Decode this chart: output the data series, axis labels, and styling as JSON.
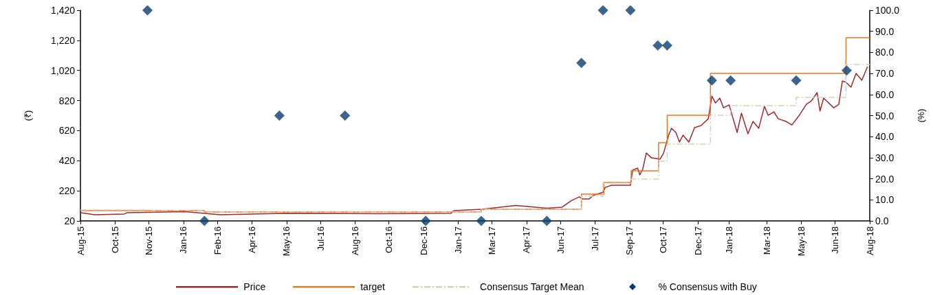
{
  "chart_data": {
    "type": "line",
    "ylabel": "(₹)",
    "y2label": "(%)",
    "xlim": [
      "2015-08-15",
      "2018-08-14"
    ],
    "xticks": [
      {
        "value": "2015-08-15",
        "label": "Aug-15"
      },
      {
        "value": "2015-10-02",
        "label": "Oct-15"
      },
      {
        "value": "2015-11-18",
        "label": "Nov-15"
      },
      {
        "value": "2016-01-05",
        "label": "Jan-16"
      },
      {
        "value": "2016-02-21",
        "label": "Feb-16"
      },
      {
        "value": "2016-04-09",
        "label": "Apr-16"
      },
      {
        "value": "2016-05-27",
        "label": "May-16"
      },
      {
        "value": "2016-07-13",
        "label": "Jul-16"
      },
      {
        "value": "2016-08-30",
        "label": "Aug-16"
      },
      {
        "value": "2016-10-16",
        "label": "Oct-16"
      },
      {
        "value": "2016-12-03",
        "label": "Dec-16"
      },
      {
        "value": "2017-01-20",
        "label": "Jan-17"
      },
      {
        "value": "2017-03-08",
        "label": "Mar-17"
      },
      {
        "value": "2017-04-25",
        "label": "Apr-17"
      },
      {
        "value": "2017-06-11",
        "label": "Jun-17"
      },
      {
        "value": "2017-07-29",
        "label": "Jul-17"
      },
      {
        "value": "2017-09-15",
        "label": "Sep-17"
      },
      {
        "value": "2017-10-31",
        "label": "Oct-17"
      },
      {
        "value": "2017-12-19",
        "label": "Dec-17"
      },
      {
        "value": "2018-01-31",
        "label": "Jan-18"
      },
      {
        "value": "2018-03-24",
        "label": "Mar-18"
      },
      {
        "value": "2018-05-11",
        "label": "May-18"
      },
      {
        "value": "2018-06-27",
        "label": "Jun-18"
      },
      {
        "value": "2018-08-14",
        "label": "Aug-18"
      }
    ],
    "ylim": [
      20,
      1420
    ],
    "yticks": [
      20,
      220,
      420,
      620,
      820,
      {
        "value": 1020,
        "label": "1,020"
      },
      {
        "value": 1220,
        "label": "1,220"
      },
      {
        "value": 1420,
        "label": "1,420"
      }
    ],
    "y2lim": [
      0,
      100
    ],
    "y2ticks": [
      {
        "value": 0,
        "label": "0.0"
      },
      {
        "value": 10,
        "label": "10.0"
      },
      {
        "value": 20,
        "label": "20.0"
      },
      {
        "value": 30,
        "label": "30.0"
      },
      {
        "value": 40,
        "label": "40.0"
      },
      {
        "value": 50,
        "label": "50.0"
      },
      {
        "value": 60,
        "label": "60.0"
      },
      {
        "value": 70,
        "label": "70.0"
      },
      {
        "value": 80,
        "label": "80.0"
      },
      {
        "value": 90,
        "label": "90.0"
      },
      {
        "value": 100,
        "label": "100.0"
      }
    ],
    "grid": false,
    "legend": "bottom",
    "marker": "none",
    "series": [
      {
        "name": "Price",
        "color": "#a0282a",
        "line_style": "solid",
        "x": [
          "2015-08-15",
          "2015-09-04",
          "2015-10-15",
          "2015-10-19",
          "2016-01-08",
          "2016-02-03",
          "2016-02-25",
          "2016-05-24",
          "2016-10-01",
          "2017-01-10",
          "2017-01-14",
          "2017-02-22",
          "2017-04-10",
          "2017-05-23",
          "2017-06-13",
          "2017-06-25",
          "2017-07-07",
          "2017-07-11",
          "2017-07-21",
          "2017-07-26",
          "2017-08-09",
          "2017-08-12",
          "2017-08-21",
          "2017-09-16",
          "2017-09-19",
          "2017-09-26",
          "2017-09-29",
          "2017-10-03",
          "2017-10-08",
          "2017-10-15",
          "2017-10-27",
          "2017-11-01",
          "2017-11-08",
          "2017-11-12",
          "2017-11-18",
          "2017-11-23",
          "2017-11-28",
          "2017-12-06",
          "2017-12-14",
          "2017-12-23",
          "2018-01-02",
          "2018-01-07",
          "2018-01-12",
          "2018-01-18",
          "2018-01-23",
          "2018-01-31",
          "2018-02-11",
          "2018-02-17",
          "2018-02-26",
          "2018-03-05",
          "2018-03-13",
          "2018-03-21",
          "2018-03-26",
          "2018-04-03",
          "2018-04-09",
          "2018-04-20",
          "2018-04-28",
          "2018-05-09",
          "2018-05-18",
          "2018-05-25",
          "2018-06-02",
          "2018-06-06",
          "2018-06-11",
          "2018-06-25",
          "2018-07-02",
          "2018-07-07",
          "2018-07-12",
          "2018-07-19",
          "2018-07-26",
          "2018-08-03",
          "2018-08-11"
        ],
        "values": [
          75,
          61,
          66,
          75,
          82,
          70,
          61,
          70,
          68,
          70,
          88,
          98,
          123,
          104,
          111,
          152,
          180,
          166,
          166,
          189,
          211,
          243,
          257,
          257,
          357,
          371,
          326,
          362,
          471,
          440,
          430,
          471,
          590,
          636,
          608,
          544,
          590,
          544,
          640,
          654,
          699,
          850,
          804,
          836,
          772,
          791,
          608,
          736,
          599,
          681,
          636,
          782,
          722,
          745,
          699,
          681,
          658,
          727,
          795,
          818,
          873,
          750,
          836,
          772,
          795,
          950,
          941,
          909,
          1000,
          955,
          1046
        ]
      },
      {
        "name": "target",
        "type": "step",
        "color": "#e87722",
        "line_style": "solid",
        "x": [
          "2015-08-15",
          "2016-02-03",
          "2017-02-21",
          "2017-07-10",
          "2017-08-10",
          "2017-09-17",
          "2017-10-25",
          "2017-11-06",
          "2018-01-05",
          "2018-07-12",
          "2018-08-14"
        ],
        "values": [
          88,
          79,
          98,
          198,
          275,
          353,
          540,
          722,
          1000,
          1238,
          1238
        ]
      },
      {
        "name": "Consensus Target Mean",
        "type": "step",
        "color": "#d4d0c0",
        "line_style": "dashed",
        "x": [
          "2015-08-15",
          "2015-11-22",
          "2016-02-03",
          "2017-02-21",
          "2017-07-10",
          "2017-08-09",
          "2017-09-17",
          "2017-10-25",
          "2017-11-06",
          "2018-01-05",
          "2018-02-02",
          "2018-05-04",
          "2018-07-12",
          "2018-08-14"
        ],
        "values": [
          93,
          88,
          79,
          98,
          184,
          271,
          298,
          417,
          531,
          722,
          786,
          841,
          1060,
          1060
        ]
      },
      {
        "name": "% Consensus with Buy",
        "type": "scatter",
        "axis": "y2",
        "marker": "diamond",
        "color": "#0a3d6e",
        "x": [
          "2015-11-16",
          "2016-02-03",
          "2016-05-17",
          "2016-08-16",
          "2016-12-06",
          "2017-02-21",
          "2017-05-23",
          "2017-07-10",
          "2017-08-09",
          "2017-09-16",
          "2017-10-24",
          "2017-11-06",
          "2018-01-07",
          "2018-02-02",
          "2018-05-04",
          "2018-07-13"
        ],
        "values": [
          100,
          0,
          50,
          50,
          0,
          0,
          0,
          75,
          100,
          100,
          83.3,
          83.3,
          66.7,
          66.7,
          66.7,
          71.4
        ]
      }
    ]
  }
}
